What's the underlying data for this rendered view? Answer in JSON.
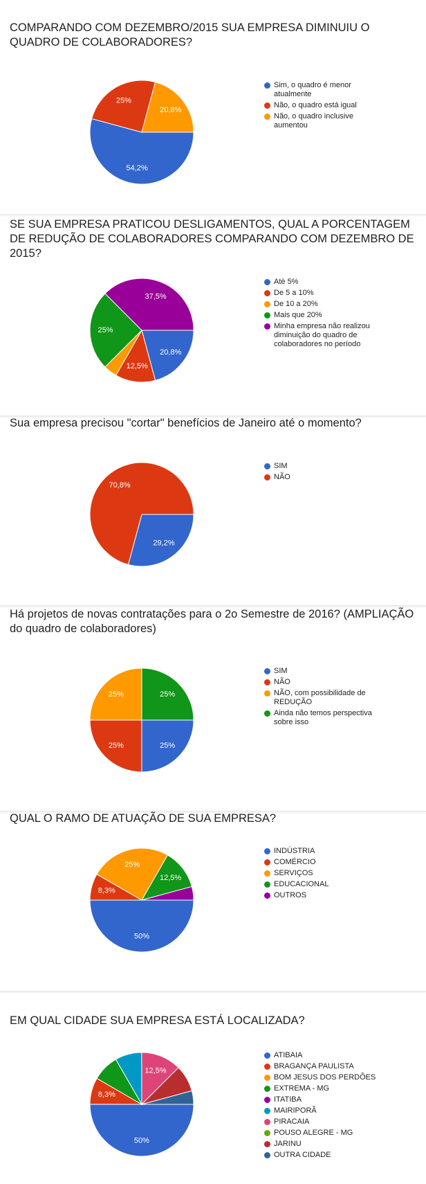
{
  "chart_data": [
    {
      "type": "pie",
      "title": "COMPARANDO COM DEZEMBRO/2015 SUA EMPRESA DIMINUIU O QUADRO DE COLABORADORES?",
      "legend_position": "right",
      "slices": [
        {
          "name": "Sim, o quadro é menor atualmente",
          "value": 54.2,
          "label": "54,2%",
          "color": "#3366cc"
        },
        {
          "name": "Não, o quadro está igual",
          "value": 25,
          "label": "25%",
          "color": "#dc3912"
        },
        {
          "name": "Não, o quadro inclusive aumentou",
          "value": 20.8,
          "label": "20,8%",
          "color": "#ff9900"
        }
      ]
    },
    {
      "type": "pie",
      "title": "SE SUA EMPRESA PRATICOU DESLIGAMENTOS, QUAL A PORCENTAGEM DE REDUÇÃO DE COLABORADORES COMPARANDO COM DEZEMBRO DE 2015?",
      "legend_position": "right",
      "slices": [
        {
          "name": "Atè 5%",
          "value": 20.8,
          "label": "20,8%",
          "color": "#3366cc"
        },
        {
          "name": "De 5 a 10%",
          "value": 12.5,
          "label": "12,5%",
          "color": "#dc3912"
        },
        {
          "name": "De 10 a 20%",
          "value": 4.2,
          "label": "",
          "color": "#ff9900"
        },
        {
          "name": "Mais que 20%",
          "value": 25,
          "label": "25%",
          "color": "#109618"
        },
        {
          "name": "Minha empresa não realizou diminuição do quadro de colaboradores no período",
          "value": 37.5,
          "label": "37,5%",
          "color": "#990099"
        }
      ]
    },
    {
      "type": "pie",
      "title": "Sua empresa precisou \"cortar\" benefícios de Janeiro até o momento?",
      "legend_position": "right",
      "slices": [
        {
          "name": "SIM",
          "value": 29.2,
          "label": "29,2%",
          "color": "#3366cc"
        },
        {
          "name": "NÃO",
          "value": 70.8,
          "label": "70,8%",
          "color": "#dc3912"
        }
      ]
    },
    {
      "type": "pie",
      "title": "Há projetos de novas contratações para o 2o Semestre de 2016? (AMPLIAÇÃO do quadro de colaboradores)",
      "legend_position": "right",
      "slices": [
        {
          "name": "SIM",
          "value": 25,
          "label": "25%",
          "color": "#3366cc"
        },
        {
          "name": "NÃO",
          "value": 25,
          "label": "25%",
          "color": "#dc3912"
        },
        {
          "name": "NÃO, com possibilidade de REDUÇÃO",
          "value": 25,
          "label": "25%",
          "color": "#ff9900"
        },
        {
          "name": "Ainda não temos perspectiva sobre isso",
          "value": 25,
          "label": "25%",
          "color": "#109618"
        }
      ]
    },
    {
      "type": "pie",
      "title": "QUAL O RAMO DE ATUAÇÃO DE SUA EMPRESA?",
      "legend_position": "right",
      "slices": [
        {
          "name": "INDÚSTRIA",
          "value": 50,
          "label": "50%",
          "color": "#3366cc"
        },
        {
          "name": "COMÉRCIO",
          "value": 8.3,
          "label": "8,3%",
          "color": "#dc3912"
        },
        {
          "name": "SERVIÇOS",
          "value": 25,
          "label": "25%",
          "color": "#ff9900"
        },
        {
          "name": "EDUCACIONAL",
          "value": 12.5,
          "label": "12,5%",
          "color": "#109618"
        },
        {
          "name": "OUTROS",
          "value": 4.2,
          "label": "",
          "color": "#990099"
        }
      ]
    },
    {
      "type": "pie",
      "title": "EM QUAL CIDADE SUA EMPRESA ESTÁ LOCALIZADA?",
      "legend_position": "right",
      "slices": [
        {
          "name": "ATIBAIA",
          "value": 50,
          "label": "50%",
          "color": "#3366cc"
        },
        {
          "name": "BRAGANÇA PAULISTA",
          "value": 8.3,
          "label": "8,3%",
          "color": "#dc3912"
        },
        {
          "name": "BOM JESUS DOS PERDÕES",
          "value": 0,
          "label": "",
          "color": "#ff9900"
        },
        {
          "name": "EXTREMA - MG",
          "value": 8.3,
          "label": "",
          "color": "#109618"
        },
        {
          "name": "ITATIBA",
          "value": 0,
          "label": "",
          "color": "#990099"
        },
        {
          "name": "MAIRIPORÃ",
          "value": 8.3,
          "label": "",
          "color": "#0099c6"
        },
        {
          "name": "PIRACAIA",
          "value": 12.5,
          "label": "12,5%",
          "color": "#dd4477"
        },
        {
          "name": "POUSO ALEGRE - MG",
          "value": 0,
          "label": "",
          "color": "#66aa00"
        },
        {
          "name": "JARINU",
          "value": 8.3,
          "label": "",
          "color": "#b82e2e"
        },
        {
          "name": "OUTRA CIDADE",
          "value": 4.2,
          "label": "",
          "color": "#316395"
        }
      ]
    }
  ]
}
